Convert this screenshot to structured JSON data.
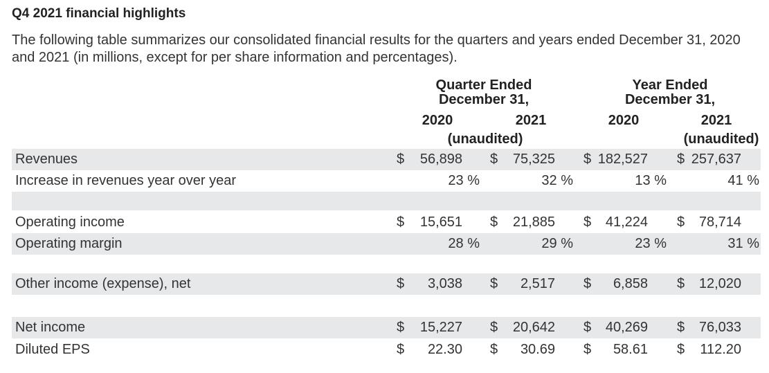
{
  "title": "Q4 2021 financial highlights",
  "intro": "The following table summarizes our consolidated financial results for the quarters and years ended December 31, 2020 and 2021 (in millions, except for per share information and percentages).",
  "headers": {
    "quarter_group_line1": "Quarter Ended",
    "quarter_group_line2": "December 31,",
    "year_group_line1": "Year Ended",
    "year_group_line2": "December 31,",
    "q_2020": "2020",
    "q_2021": "2021",
    "y_2020": "2020",
    "y_2021": "2021",
    "quarter_note": "(unaudited)",
    "year_note": "(unaudited)"
  },
  "rows": [
    {
      "label": "Revenues",
      "cur": [
        "$",
        "$",
        "$",
        "$"
      ],
      "values": [
        "56,898",
        "75,325",
        "182,527",
        "257,637"
      ]
    },
    {
      "label": "Increase in revenues year over year",
      "values": [
        "23 %",
        "32 %",
        "13 %",
        "41 %"
      ]
    },
    {
      "label": "Operating income",
      "cur": [
        "$",
        "$",
        "$",
        "$"
      ],
      "values": [
        "15,651",
        "21,885",
        "41,224",
        "78,714"
      ]
    },
    {
      "label": "Operating margin",
      "values": [
        "28 %",
        "29 %",
        "23 %",
        "31 %"
      ]
    },
    {
      "label": "Other income (expense), net",
      "cur": [
        "$",
        "$",
        "$",
        "$"
      ],
      "values": [
        "3,038",
        "2,517",
        "6,858",
        "12,020"
      ]
    },
    {
      "label": "Net income",
      "cur": [
        "$",
        "$",
        "$",
        "$"
      ],
      "values": [
        "15,227",
        "20,642",
        "40,269",
        "76,033"
      ]
    },
    {
      "label": "Diluted EPS",
      "cur": [
        "$",
        "$",
        "$",
        "$"
      ],
      "values": [
        "22.30",
        "30.69",
        "58.61",
        "112.20"
      ]
    }
  ]
}
